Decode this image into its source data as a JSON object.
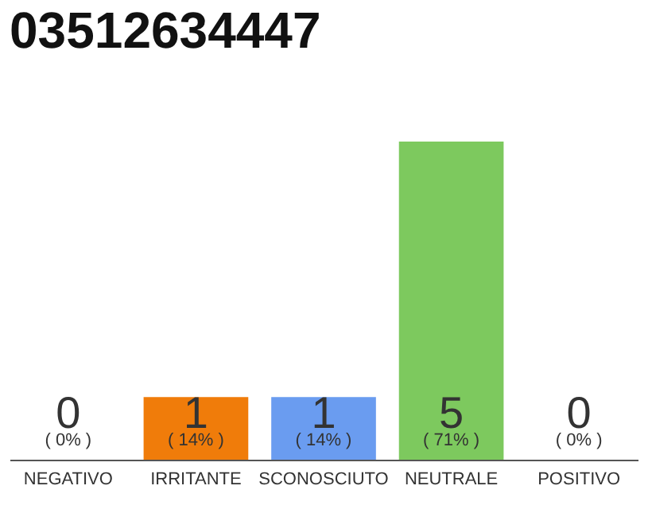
{
  "chart_data": {
    "type": "bar",
    "title": "03512634447",
    "categories": [
      "NEGATIVO",
      "IRRITANTE",
      "SCONOSCIUTO",
      "NEUTRALE",
      "POSITIVO"
    ],
    "values": [
      0,
      14,
      14,
      71,
      0
    ],
    "colors": [
      "#cccccc",
      "#f07c0a",
      "#6a9cf0",
      "#7dc95e",
      "#cccccc"
    ],
    "value_labels": [
      "( 0% )",
      "( 14% )",
      "( 14% )",
      "( 71% )",
      "( 0% )"
    ],
    "annotations": [
      "0",
      "1",
      "1",
      "5",
      "0"
    ]
  }
}
